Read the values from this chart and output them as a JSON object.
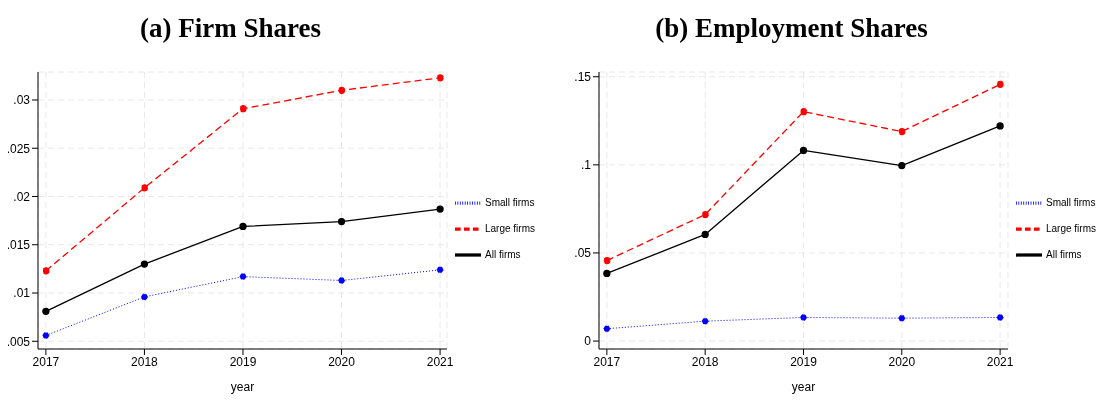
{
  "chart_data": [
    {
      "type": "line",
      "title": "(a)  Firm Shares",
      "xlabel": "year",
      "x": [
        2017,
        2018,
        2019,
        2020,
        2021
      ],
      "xlim": [
        2016.92,
        2021.07
      ],
      "xticks": [
        2017,
        2018,
        2019,
        2020,
        2021
      ],
      "ylim": [
        0.0042,
        0.0329
      ],
      "yticks": [
        {
          "value": 0.005,
          "label": ".005"
        },
        {
          "value": 0.01,
          "label": ".01"
        },
        {
          "value": 0.015,
          "label": ".015"
        },
        {
          "value": 0.02,
          "label": ".02"
        },
        {
          "value": 0.025,
          "label": ".025"
        },
        {
          "value": 0.03,
          "label": ".03"
        }
      ],
      "grid": true,
      "legend": "right",
      "marker": "circle",
      "series": [
        {
          "name": "Small firms",
          "color": "#0000ff",
          "line_style": "dotted",
          "values": [
            0.0056,
            0.0096,
            0.0117,
            0.0113,
            0.0124
          ]
        },
        {
          "name": "Large firms",
          "color": "#ff0000",
          "line_style": "dashed",
          "values": [
            0.0123,
            0.0209,
            0.0291,
            0.031,
            0.0323
          ]
        },
        {
          "name": "All firms",
          "color": "#000000",
          "line_style": "solid",
          "values": [
            0.0081,
            0.013,
            0.0169,
            0.0174,
            0.0187
          ]
        }
      ]
    },
    {
      "type": "line",
      "title": "(b)  Employment Shares",
      "xlabel": "year",
      "x": [
        2017,
        2018,
        2019,
        2020,
        2021
      ],
      "xlim": [
        2016.92,
        2021.08
      ],
      "xticks": [
        2017,
        2018,
        2019,
        2020,
        2021
      ],
      "ylim": [
        -0.0045,
        0.1527
      ],
      "yticks": [
        0,
        {
          "value": 0.05,
          "label": ".05"
        },
        {
          "value": 0.1,
          "label": ".1"
        },
        {
          "value": 0.15,
          "label": ".15"
        }
      ],
      "grid": true,
      "legend": "right",
      "marker": "circle",
      "series": [
        {
          "name": "Small firms",
          "color": "#0000ff",
          "line_style": "dotted",
          "values": [
            0.007,
            0.0113,
            0.0134,
            0.013,
            0.0134
          ]
        },
        {
          "name": "Large firms",
          "color": "#ff0000",
          "line_style": "dashed",
          "values": [
            0.0457,
            0.0718,
            0.1302,
            0.1189,
            0.1457
          ]
        },
        {
          "name": "All firms",
          "color": "#000000",
          "line_style": "solid",
          "values": [
            0.0384,
            0.0605,
            0.1082,
            0.0996,
            0.1221
          ]
        }
      ]
    }
  ]
}
